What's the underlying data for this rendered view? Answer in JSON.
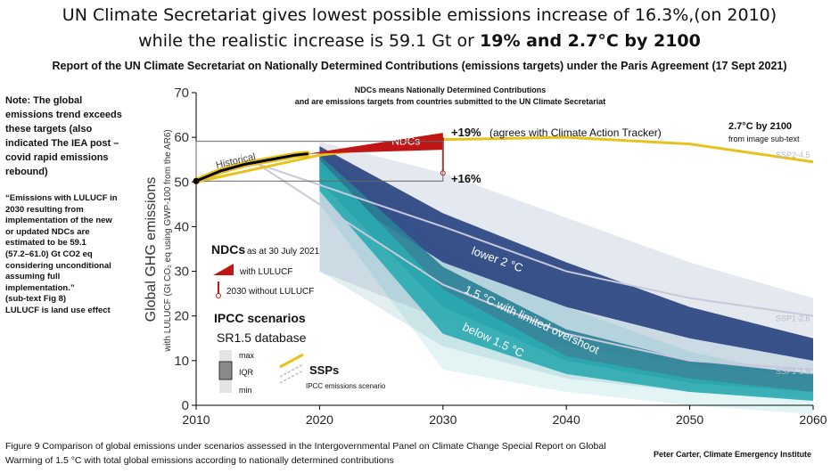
{
  "header": {
    "title_line1": "UN Climate Secretariat gives lowest possible emissions increase of 16.3%,(on 2010)",
    "title_line2_plain": "while the realistic increase is 59.1 Gt or ",
    "title_line2_bold": "19% and 2.7°C by 2100",
    "subtitle": "Report of the UN Climate Secretariat on Nationally Determined Contributions  (emissions targets)  under the Paris Agreement (17 Sept 2021)"
  },
  "side_notes": {
    "note": "Note: The global emissions trend exceeds these targets (also indicated The IEA post –covid rapid emissions rebound)",
    "quote_lines": [
      "“Emissions with LULUCF in",
      "2030 resulting from",
      "implementation of the new",
      "or updated NDCs are",
      "estimated to be 59.1",
      " (57.2–61.0) Gt CO2 eq",
      "considering unconditional",
      "assuming full",
      "implementation.”",
      " (sub-text Fig 8)",
      "LULUCF is land use effect"
    ]
  },
  "caption": "Figure 9 Comparison of global emissions under scenarios assessed in the Intergovernmental Panel on Climate Change Special Report on Global Warming of 1.5 °C with total global emissions according to nationally determined contributions",
  "credit": "Peter Carter, Climate Emergency Institute",
  "chart_data": {
    "type": "area",
    "ylabel": "Global GHG emissions",
    "ylabel_sub": "with LULUCF (Gt CO₂ eq using GWP-100 from the AR6)",
    "xlim": [
      2010,
      2060
    ],
    "ylim": [
      0,
      70
    ],
    "x_ticks": [
      2010,
      2020,
      2030,
      2040,
      2050,
      2060
    ],
    "y_ticks": [
      0,
      10,
      20,
      30,
      40,
      50,
      60,
      70
    ],
    "historical": {
      "label": "Historical",
      "x": [
        2010,
        2012,
        2014,
        2016,
        2018,
        2019
      ],
      "y": [
        50.2,
        52.5,
        54,
        55,
        56,
        56.3
      ]
    },
    "ndc": {
      "label": "NDCs",
      "x": [
        2019,
        2030
      ],
      "upper_2030": 61.0,
      "lower_2030": 57.2,
      "with_lulucf_2030": 59.1,
      "without_lulucf_range": [
        52,
        60
      ]
    },
    "series": [
      {
        "name": "lower 2 °C",
        "x": [
          2020,
          2030,
          2040,
          2050,
          2060
        ],
        "iqr_low": [
          50,
          32,
          22,
          15,
          10
        ],
        "iqr_high": [
          58,
          43,
          32,
          22,
          15
        ],
        "max": [
          59,
          52,
          42,
          32,
          24
        ]
      },
      {
        "name": "1.5 °C with limited overshoot",
        "x": [
          2020,
          2030,
          2040,
          2050,
          2060
        ],
        "iqr_low": [
          50,
          22,
          10,
          5,
          3
        ],
        "iqr_high": [
          56,
          31,
          17,
          10,
          7
        ],
        "max": [
          58,
          40,
          28,
          20,
          12
        ]
      },
      {
        "name": "below 1.5 °C",
        "x": [
          2020,
          2030,
          2040,
          2050,
          2060
        ],
        "iqr_low": [
          48,
          16,
          7,
          3,
          1
        ],
        "iqr_high": [
          55,
          26,
          11,
          6,
          3
        ],
        "max": [
          57,
          35,
          22,
          12,
          6
        ],
        "min": [
          45,
          8,
          3,
          0,
          -2
        ]
      }
    ],
    "ssps": [
      {
        "name": "SSP2-4.5",
        "x": [
          2010,
          2020,
          2030,
          2040,
          2050,
          2060
        ],
        "y": [
          50,
          56,
          59.5,
          60,
          58.5,
          54.5
        ]
      },
      {
        "name": "SSP1-2.6",
        "x": [
          2015,
          2030,
          2040,
          2050,
          2060
        ],
        "y": [
          54,
          40,
          30,
          24,
          20
        ]
      },
      {
        "name": "SSP1-1.9",
        "x": [
          2015,
          2030,
          2040,
          2050,
          2060
        ],
        "y": [
          54,
          27,
          16,
          10,
          8
        ]
      }
    ],
    "annotations": {
      "ndc_definition": [
        "NDCs means  Nationally Determined Contributions",
        "and are emissions targets from countries  submitted to the UN Climate Secretariat"
      ],
      "plus19": "+19%",
      "plus19_note": "(agrees with Climate Action Tracker)",
      "plus16": "+16%",
      "temp_label": "2.7°C by 2100",
      "temp_sub": "from image sub-text"
    },
    "legend": {
      "ndc_title": "NDCs",
      "ndc_date": "as at 30 July 2021",
      "with_lulucf": "with LULUCF",
      "without_lulucf": "2030 without LULUCF",
      "ipcc_title": "IPCC scenarios",
      "ipcc_db": "SR1.5 database",
      "max": "max",
      "iqr": "IQR",
      "min": "min",
      "ssps": "SSPs",
      "ssps_sub": "IPCC emissions scenario"
    },
    "colors": {
      "lower2": "#2f4a84",
      "limited": "#2a7f96",
      "below": "#2aaab0",
      "ssp": "#e8c21c",
      "ndc": "#c01616",
      "historical": "#000000"
    }
  }
}
